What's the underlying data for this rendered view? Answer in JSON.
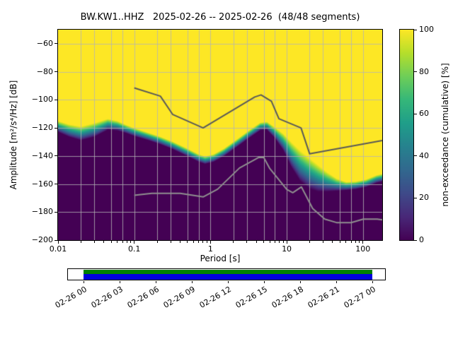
{
  "title": "BW.KW1..HHZ   2025-02-26 -- 2025-02-26  (48/48 segments)",
  "chart_data": {
    "type": "heatmap",
    "title": "BW.KW1..HHZ   2025-02-26 -- 2025-02-26  (48/48 segments)",
    "station": "BW.KW1..HHZ",
    "date_range": "2025-02-26 -- 2025-02-26",
    "segments": "48/48 segments",
    "xlabel": "Period [s]",
    "ylabel": "Amplitude [m²/s⁴/Hz] [dB]",
    "colorbar_label": "non-exceedance (cumulative) [%]",
    "x_scale": "log",
    "xlim": [
      0.01,
      179
    ],
    "ylim": [
      -200,
      -50
    ],
    "x_ticks": [
      {
        "value": 0.01,
        "label": "0.01"
      },
      {
        "value": 0.1,
        "label": "0.1"
      },
      {
        "value": 1,
        "label": "1"
      },
      {
        "value": 10,
        "label": "10"
      },
      {
        "value": 100,
        "label": "100"
      }
    ],
    "y_ticks": [
      -200,
      -180,
      -160,
      -140,
      -120,
      -100,
      -80,
      -60
    ],
    "colorbar_ticks": [
      0,
      20,
      40,
      60,
      80,
      100
    ],
    "grid": {
      "x_values": [
        0.02,
        0.03,
        0.05,
        0.07,
        0.1,
        0.2,
        0.3,
        0.5,
        0.7,
        1,
        2,
        3,
        5,
        7,
        10,
        20,
        30,
        50,
        70,
        100
      ],
      "y_values": [
        -180,
        -160,
        -140,
        -120,
        -100,
        -80,
        -60
      ]
    },
    "ppsd_distribution": {
      "note": "cumulative non-exceedance: 0% (dark) below median-spread, 100% (yellow) above median+spread",
      "periods": [
        0.01,
        0.014,
        0.02,
        0.03,
        0.045,
        0.06,
        0.08,
        0.1,
        0.15,
        0.22,
        0.32,
        0.5,
        0.7,
        0.85,
        1.1,
        1.5,
        2.2,
        3.2,
        4.5,
        5.5,
        7,
        9,
        11.5,
        15,
        20,
        26,
        34,
        45,
        60,
        80,
        110,
        150,
        179
      ],
      "median_db": [
        -119,
        -122,
        -124,
        -121.5,
        -117.5,
        -118.5,
        -121,
        -123,
        -126,
        -129,
        -132.5,
        -137.5,
        -141.5,
        -143,
        -141.5,
        -137.5,
        -131,
        -124.5,
        -119,
        -118.5,
        -123.5,
        -130,
        -139,
        -147,
        -152.5,
        -156,
        -158.5,
        -160.5,
        -161.5,
        -161,
        -159.5,
        -156.5,
        -155.5
      ],
      "spread_db": [
        4,
        4.5,
        5,
        5,
        4,
        3.5,
        3,
        3,
        2.8,
        2.8,
        2.8,
        2.8,
        2.8,
        2.8,
        2.8,
        2.8,
        2.8,
        2.8,
        2.8,
        3,
        4,
        6,
        9,
        11,
        11,
        9.5,
        7,
        4.5,
        3,
        2.8,
        2.8,
        2.8,
        2.8
      ]
    },
    "noise_models": {
      "nhnm": {
        "name": "Peterson New High Noise Model",
        "color": "#595959",
        "periods": [
          0.1,
          0.22,
          0.32,
          0.8,
          3.8,
          4.6,
          6.3,
          7.9,
          15.4,
          20,
          179
        ],
        "db": [
          -91.5,
          -97.4,
          -110.5,
          -120,
          -98,
          -96.5,
          -101,
          -113.5,
          -120,
          -138.5,
          -129
        ]
      },
      "nlnm": {
        "name": "Peterson New Low Noise Model",
        "color": "#8f8f8f",
        "periods": [
          0.1,
          0.17,
          0.4,
          0.8,
          1.24,
          2.4,
          4.3,
          5,
          6,
          10,
          12,
          15.6,
          21.9,
          31.6,
          45,
          70,
          101,
          154,
          179
        ],
        "db": [
          -168,
          -166.7,
          -166.7,
          -169.2,
          -163.7,
          -148.6,
          -141.1,
          -141.1,
          -149,
          -163.8,
          -166.2,
          -162.1,
          -177.5,
          -185,
          -187.5,
          -187.5,
          -185,
          -185,
          -185.5
        ]
      }
    },
    "viridis_stops": [
      "#440154",
      "#482878",
      "#3e4a89",
      "#31688e",
      "#26828e",
      "#1f9e89",
      "#35b779",
      "#6ece58",
      "#b5de2b",
      "#fde725"
    ]
  },
  "coverage": {
    "tick_labels": [
      "02-26 00",
      "02-26 03",
      "02-26 06",
      "02-26 09",
      "02-26 12",
      "02-26 15",
      "02-26 18",
      "02-26 21",
      "02-27 00"
    ],
    "used_color": "#008000",
    "data_color": "#0000dd"
  }
}
